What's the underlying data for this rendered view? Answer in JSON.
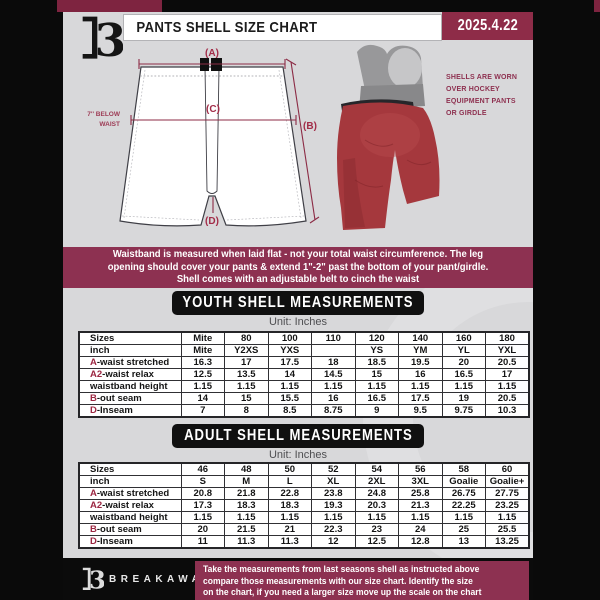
{
  "page": {
    "title": "PANTS SHELL SIZE CHART",
    "date": "2025.4.22"
  },
  "diagram": {
    "label_a": "(A)",
    "label_b": "(B)",
    "label_c": "(C)",
    "label_d": "(D)",
    "waist_note": [
      "7'' BELOW",
      "WAIST"
    ],
    "photo_note": [
      "SHELLS ARE WORN",
      "OVER HOCKEY",
      "EQUIPMENT PANTS",
      "OR GIRDLE"
    ]
  },
  "notice": {
    "lines": [
      "Waistband is measured when laid flat - not your total waist circumference. The leg",
      "opening should cover your pants & extend 1\"-2\" past the bottom of your pant/girdle.",
      "Shell comes with an adjustable belt to cinch the waist"
    ]
  },
  "youth": {
    "title": "YOUTH SHELL MEASUREMENTS",
    "unit": "Unit: Inches",
    "rows": [
      {
        "prefix": "",
        "label": "Sizes",
        "values": [
          "Mite",
          "80",
          "100",
          "110",
          "120",
          "140",
          "160",
          "180"
        ]
      },
      {
        "prefix": "",
        "label": "inch",
        "values": [
          "Mite",
          "Y2XS",
          "YXS",
          "",
          "YS",
          "YM",
          "YL",
          "YXL"
        ]
      },
      {
        "prefix": "A",
        "label": "-waist stretched",
        "values": [
          "16.3",
          "17",
          "17.5",
          "18",
          "18.5",
          "19.5",
          "20",
          "20.5"
        ]
      },
      {
        "prefix": "A2",
        "label": "-waist relax",
        "values": [
          "12.5",
          "13.5",
          "14",
          "14.5",
          "15",
          "16",
          "16.5",
          "17"
        ]
      },
      {
        "prefix": "",
        "label": "waistband height",
        "values": [
          "1.15",
          "1.15",
          "1.15",
          "1.15",
          "1.15",
          "1.15",
          "1.15",
          "1.15"
        ]
      },
      {
        "prefix": "B",
        "label": "-out seam",
        "values": [
          "14",
          "15",
          "15.5",
          "16",
          "16.5",
          "17.5",
          "19",
          "20.5"
        ]
      },
      {
        "prefix": "D",
        "label": "-Inseam",
        "values": [
          "7",
          "8",
          "8.5",
          "8.75",
          "9",
          "9.5",
          "9.75",
          "10.3"
        ]
      }
    ]
  },
  "adult": {
    "title": "ADULT SHELL MEASUREMENTS",
    "unit": "Unit: Inches",
    "rows": [
      {
        "prefix": "",
        "label": "Sizes",
        "values": [
          "46",
          "48",
          "50",
          "52",
          "54",
          "56",
          "58",
          "60"
        ]
      },
      {
        "prefix": "",
        "label": "inch",
        "values": [
          "S",
          "M",
          "L",
          "XL",
          "2XL",
          "3XL",
          "Goalie",
          "Goalie+"
        ]
      },
      {
        "prefix": "A",
        "label": "-waist stretched",
        "values": [
          "20.8",
          "21.8",
          "22.8",
          "23.8",
          "24.8",
          "25.8",
          "26.75",
          "27.75"
        ]
      },
      {
        "prefix": "A2",
        "label": "-waist relax",
        "values": [
          "17.3",
          "18.3",
          "18.3",
          "19.3",
          "20.3",
          "21.3",
          "22.25",
          "23.25"
        ]
      },
      {
        "prefix": "",
        "label": "waistband height",
        "values": [
          "1.15",
          "1.15",
          "1.15",
          "1.15",
          "1.15",
          "1.15",
          "1.15",
          "1.15"
        ]
      },
      {
        "prefix": "B",
        "label": "-out seam",
        "values": [
          "20",
          "21.5",
          "21",
          "22.3",
          "23",
          "24",
          "25",
          "25.5"
        ]
      },
      {
        "prefix": "D",
        "label": "-Inseam",
        "values": [
          "11",
          "11.3",
          "11.3",
          "12",
          "12.5",
          "12.8",
          "13",
          "13.25"
        ]
      }
    ]
  },
  "footer": {
    "brand": "BREAKAWAY",
    "lines": [
      "Take the measurements from last seasons shell as instructed above",
      "compare those measurements  with our size chart. Identify the size",
      "on the chart, if you need a larger size move up the scale on the chart"
    ]
  },
  "colors": {
    "maroon_band": "#8d3151",
    "maroon_dark": "#7e2440",
    "date_bg": "#8e2c48",
    "accent_red": "#a22c48",
    "page_bg": "#d8d8da",
    "banner_bg": "#101010",
    "shell_red": "#a5383d"
  }
}
